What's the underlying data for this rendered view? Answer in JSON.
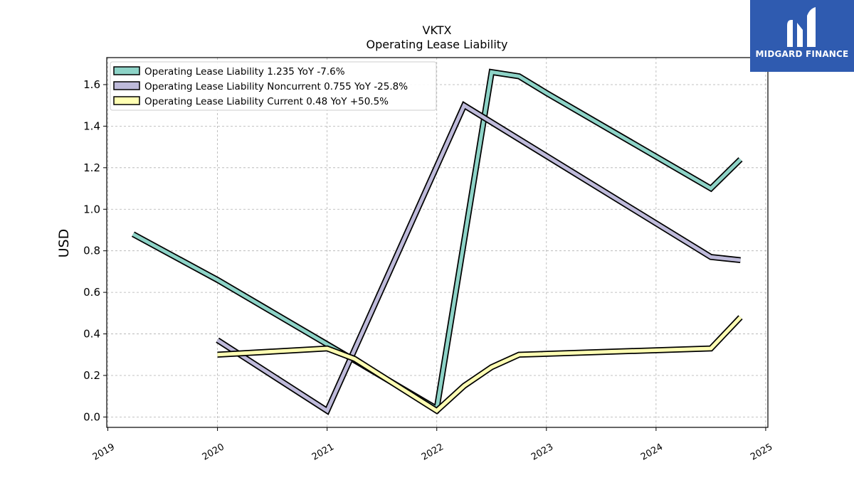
{
  "chart_data": {
    "type": "line",
    "title": "VKTX",
    "subtitle": "Operating Lease Liability",
    "ylabel": "USD",
    "xlabel": "",
    "xlim": [
      2018.99,
      2025.02
    ],
    "ylim": [
      -0.05,
      1.73
    ],
    "yticks": [
      0.0,
      0.2,
      0.4,
      0.6,
      0.8,
      1.0,
      1.2,
      1.4,
      1.6
    ],
    "ytick_labels": [
      "0.0",
      "0.2",
      "0.4",
      "0.6",
      "0.8",
      "1.0",
      "1.2",
      "1.4",
      "1.6"
    ],
    "xticks": [
      2019,
      2020,
      2021,
      2022,
      2023,
      2024,
      2025
    ],
    "xtick_labels": [
      "2019",
      "2020",
      "2021",
      "2022",
      "2023",
      "2024",
      "2025"
    ],
    "grid": true,
    "legend_position": "top-left",
    "series": [
      {
        "name": "Operating Lease Liability  1.235 YoY -7.6%",
        "color": "#8dd3c7",
        "x": [
          2019.23,
          2020.0,
          2021.0,
          2022.0,
          2022.5,
          2022.75,
          2023.0,
          2024.5,
          2024.77
        ],
        "y": [
          0.88,
          0.66,
          0.35,
          0.04,
          1.66,
          1.64,
          1.56,
          1.1,
          1.24
        ]
      },
      {
        "name": "Operating Lease Liability Noncurrent  0.755 YoY -25.8%",
        "color": "#bebada",
        "x": [
          2020.0,
          2021.0,
          2022.25,
          2024.5,
          2024.77
        ],
        "y": [
          0.37,
          0.03,
          1.5,
          0.77,
          0.755
        ]
      },
      {
        "name": "Operating Lease Liability Current  0.48 YoY +50.5%",
        "color": "#ffffb3",
        "x": [
          2020.0,
          2021.0,
          2021.25,
          2022.0,
          2022.25,
          2022.5,
          2022.75,
          2024.5,
          2024.77
        ],
        "y": [
          0.3,
          0.33,
          0.28,
          0.03,
          0.15,
          0.24,
          0.3,
          0.33,
          0.48
        ]
      }
    ]
  },
  "logo": {
    "text": "MIDGARD FINANCE",
    "color": "#2f5bb0"
  }
}
